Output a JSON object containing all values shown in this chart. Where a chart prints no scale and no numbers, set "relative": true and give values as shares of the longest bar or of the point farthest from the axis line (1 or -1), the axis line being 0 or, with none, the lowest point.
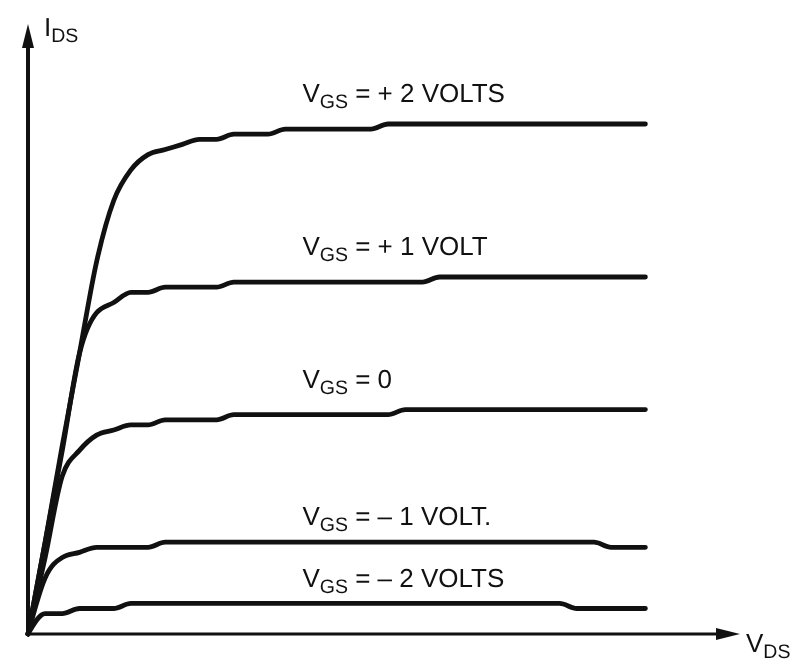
{
  "chart_data": {
    "type": "line",
    "relative": true,
    "xlabel": "V$_{DS}$",
    "ylabel": "I$_{DS}$",
    "categories": [
      null,
      null,
      null,
      null,
      null,
      null,
      null,
      null,
      null,
      null,
      null,
      null,
      null,
      null,
      null,
      null,
      null,
      null,
      null,
      null,
      null,
      null,
      null,
      null,
      null,
      null,
      null,
      null,
      null,
      null,
      null,
      null,
      null,
      null,
      null,
      null,
      null,
      null,
      null,
      null,
      null
    ],
    "series": [
      {
        "name": "V$_{GS}$ = + 2 VOLTS",
        "color": "#111111",
        "values": [
          0,
          0.18,
          0.37,
          0.55,
          0.73,
          0.85,
          0.91,
          0.94,
          0.95,
          0.96,
          0.97,
          0.97,
          0.98,
          0.98,
          0.98,
          0.99,
          0.99,
          0.99,
          0.99,
          0.99,
          0.99,
          1,
          1,
          1,
          1,
          1,
          1,
          1,
          1,
          1,
          1,
          1,
          1,
          1,
          1,
          1,
          1,
          null,
          null,
          null,
          null
        ]
      },
      {
        "name": "V$_{GS}$ = + 1 VOLT",
        "color": "#111111",
        "values": [
          0,
          0.18,
          0.36,
          0.55,
          0.63,
          0.65,
          0.67,
          0.67,
          0.68,
          0.68,
          0.68,
          0.68,
          0.69,
          0.69,
          0.69,
          0.69,
          0.69,
          0.69,
          0.69,
          0.69,
          0.69,
          0.69,
          0.69,
          0.69,
          0.7,
          0.7,
          0.7,
          0.7,
          0.7,
          0.7,
          0.7,
          0.7,
          0.7,
          0.7,
          0.7,
          0.7,
          0.7,
          null,
          null,
          null,
          null
        ]
      },
      {
        "name": "V$_{GS}$ = 0",
        "color": "#111111",
        "values": [
          0,
          0.15,
          0.31,
          0.36,
          0.39,
          0.4,
          0.41,
          0.41,
          0.42,
          0.42,
          0.42,
          0.42,
          0.43,
          0.43,
          0.43,
          0.43,
          0.43,
          0.43,
          0.43,
          0.43,
          0.43,
          0.43,
          0.44,
          0.44,
          0.44,
          0.44,
          0.44,
          0.44,
          0.44,
          0.44,
          0.44,
          0.44,
          0.44,
          0.44,
          0.44,
          0.44,
          0.44,
          null,
          null,
          null,
          null
        ]
      },
      {
        "name": "V$_{GS}$ = – 1 VOLT.",
        "color": "#111111",
        "values": [
          0,
          0.11,
          0.15,
          0.16,
          0.17,
          0.17,
          0.17,
          0.17,
          0.18,
          0.18,
          0.18,
          0.18,
          0.18,
          0.18,
          0.18,
          0.18,
          0.18,
          0.18,
          0.18,
          0.18,
          0.18,
          0.18,
          0.18,
          0.18,
          0.18,
          0.18,
          0.18,
          0.18,
          0.18,
          0.18,
          0.18,
          0.18,
          0.18,
          0.18,
          0.17,
          0.17,
          0.17,
          null,
          null,
          null,
          null
        ]
      },
      {
        "name": "V$_{GS}$ = – 2 VOLTS",
        "color": "#111111",
        "values": [
          0,
          0.04,
          0.04,
          0.05,
          0.05,
          0.05,
          0.06,
          0.06,
          0.06,
          0.06,
          0.06,
          0.06,
          0.06,
          0.06,
          0.06,
          0.06,
          0.06,
          0.06,
          0.06,
          0.06,
          0.06,
          0.06,
          0.06,
          0.06,
          0.06,
          0.06,
          0.06,
          0.06,
          0.06,
          0.06,
          0.06,
          0.06,
          0.05,
          0.05,
          0.05,
          0.05,
          0.05,
          null,
          null,
          null,
          null
        ]
      }
    ]
  }
}
